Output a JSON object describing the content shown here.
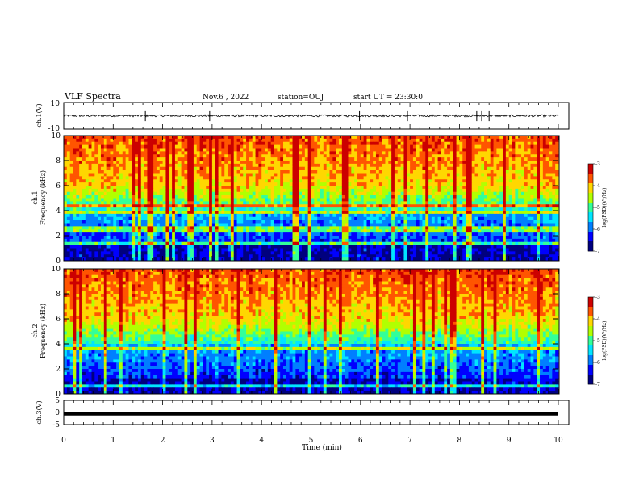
{
  "header": {
    "title": "VLF Spectra",
    "date": "Nov.6 , 2022",
    "station": "station=OUJ",
    "start": "start UT = 23:30:0"
  },
  "colors": {
    "colormap": [
      "#00007f",
      "#0000ff",
      "#007fff",
      "#00e5ff",
      "#33ff99",
      "#b2ff00",
      "#ffd700",
      "#ff5500",
      "#cc0000"
    ],
    "trace": "#000000"
  },
  "chart_data": [
    {
      "type": "line",
      "title": "",
      "ylabel": "ch.1(V)",
      "ylim": [
        -10,
        10
      ],
      "yticks": [
        "10",
        "-10"
      ],
      "xlim": [
        0,
        10
      ],
      "description_values": {
        "baseline": 0,
        "spikes_x": [
          1.65,
          2.95,
          5.98,
          6.95,
          8.35,
          8.45,
          8.6
        ]
      }
    },
    {
      "type": "heatmap",
      "ylabel": "ch.1\nFrequency (kHz)",
      "ylabel_line1": "ch.1",
      "ylabel_line2": "Frequency (kHz)",
      "ylim": [
        0,
        10
      ],
      "yticks": [
        "0",
        "2",
        "4",
        "6",
        "8",
        "10"
      ],
      "xlim": [
        0,
        10
      ],
      "colorbar": {
        "label": "log(PSD)(V²/Hz)",
        "ticks": [
          "-3",
          "-4",
          "-5",
          "-6",
          "-7"
        ],
        "range": [
          -7,
          -3
        ]
      }
    },
    {
      "type": "heatmap",
      "ylabel": "ch.2\nFrequency (kHz)",
      "ylabel_line1": "ch.2",
      "ylabel_line2": "Frequency (kHz)",
      "ylim": [
        0,
        10
      ],
      "yticks": [
        "0",
        "2",
        "4",
        "6",
        "8",
        "10"
      ],
      "xlim": [
        0,
        10
      ],
      "colorbar": {
        "label": "log(PSD)(V²/Hz)",
        "ticks": [
          "-3",
          "-4",
          "-5",
          "-6",
          "-7"
        ],
        "range": [
          -7,
          -3
        ]
      }
    },
    {
      "type": "line",
      "ylabel": "ch.3(V)",
      "ylim": [
        -5,
        5
      ],
      "yticks": [
        "5",
        "0",
        "-5"
      ],
      "xlim": [
        0,
        10
      ],
      "description_values": {
        "level": -0.6
      }
    }
  ],
  "xaxis": {
    "label": "Time (min)",
    "ticks": [
      "0",
      "1",
      "2",
      "3",
      "4",
      "5",
      "6",
      "7",
      "8",
      "9",
      "10"
    ]
  }
}
